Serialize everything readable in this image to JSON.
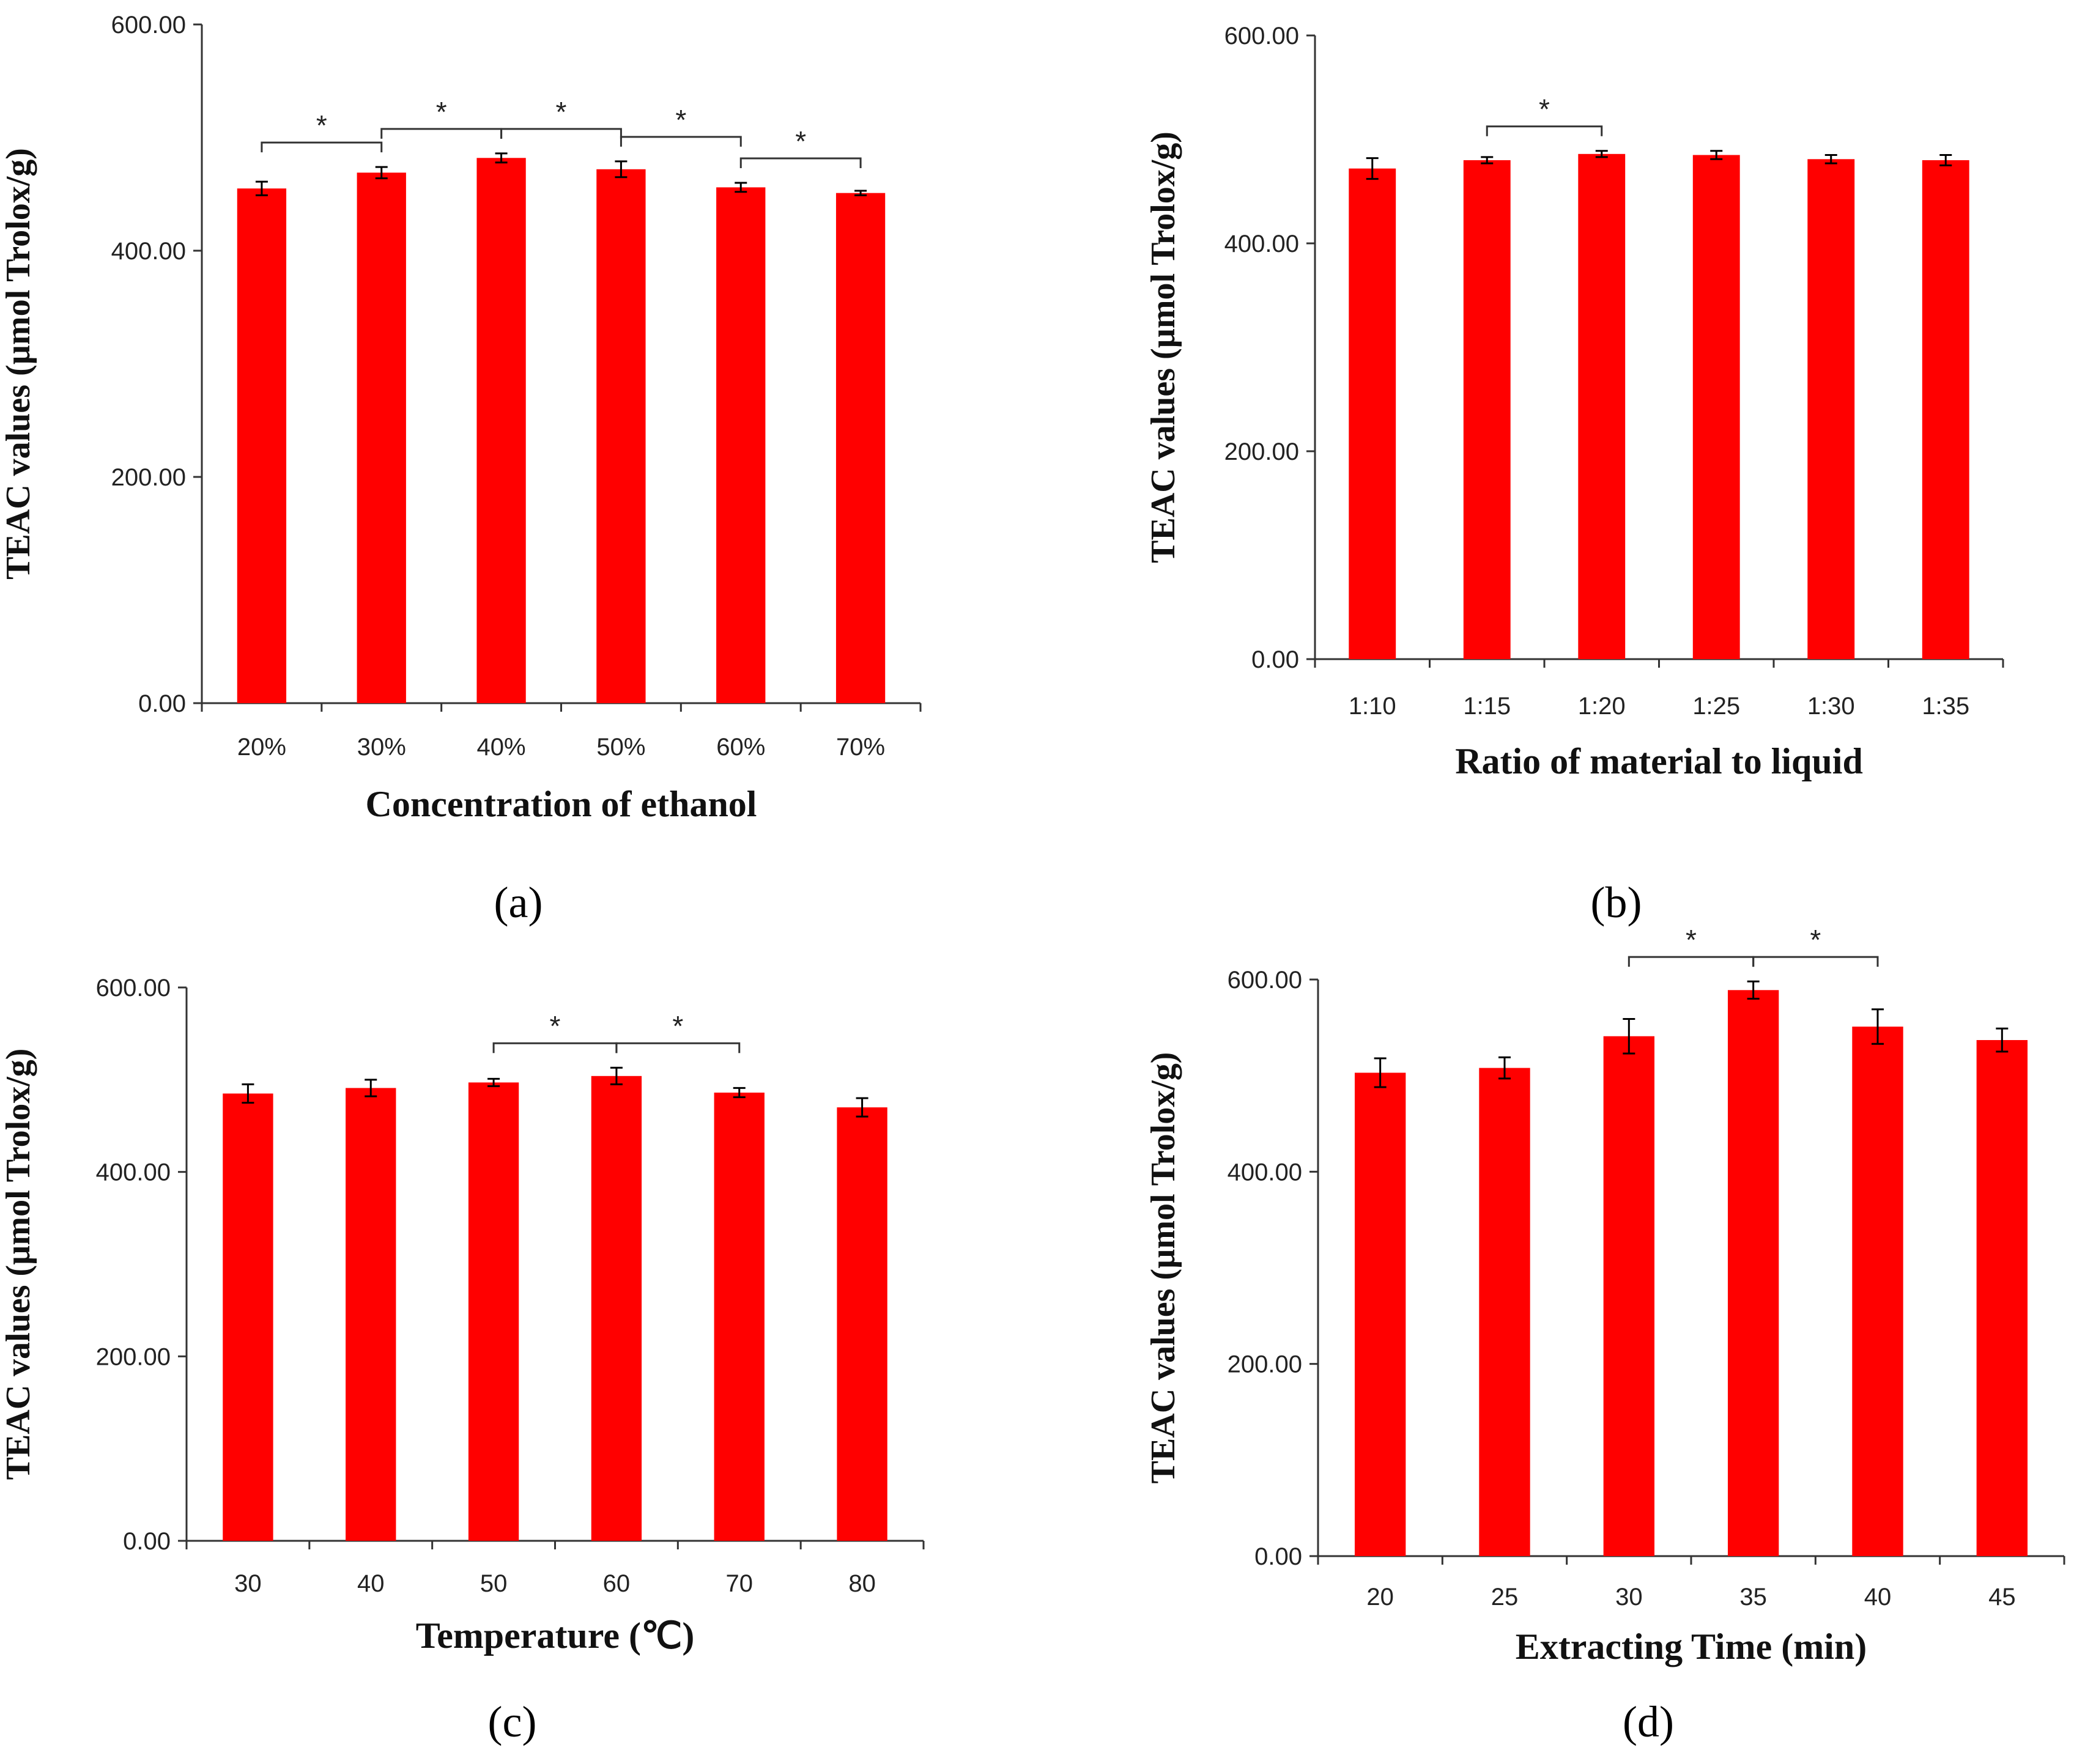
{
  "chart_data": [
    {
      "type": "bar",
      "panel_label": "(a)",
      "categories": [
        "20%",
        "30%",
        "40%",
        "50%",
        "60%",
        "70%"
      ],
      "values": [
        455,
        469,
        482,
        472,
        456,
        451
      ],
      "errors": [
        6,
        5,
        4,
        7,
        4,
        2
      ],
      "ylim": [
        0,
        600
      ],
      "yticks": [
        "0.00",
        "200.00",
        "400.00",
        "600.00"
      ],
      "ylabel": "TEAC values (µmol Trolox/g)",
      "xlabel": "Concentration of ethanol",
      "significance": [
        {
          "from": 0,
          "to": 1,
          "label": "*"
        },
        {
          "from": 1,
          "to": 2,
          "label": "*"
        },
        {
          "from": 2,
          "to": 3,
          "label": "*"
        },
        {
          "from": 3,
          "to": 4,
          "label": "*"
        },
        {
          "from": 4,
          "to": 5,
          "label": "*"
        }
      ],
      "color": "#ff0000"
    },
    {
      "type": "bar",
      "panel_label": "(b)",
      "categories": [
        "1:10",
        "1:15",
        "1:20",
        "1:25",
        "1:30",
        "1:35"
      ],
      "values": [
        472,
        480,
        486,
        485,
        481,
        480
      ],
      "errors": [
        10,
        3,
        3,
        4,
        4,
        5
      ],
      "ylim": [
        0,
        600
      ],
      "yticks": [
        "0.00",
        "200.00",
        "400.00",
        "600.00"
      ],
      "ylabel": "TEAC values (µmol Trolox/g)",
      "xlabel": "Ratio of material to liquid",
      "significance": [
        {
          "from": 1,
          "to": 2,
          "label": "*"
        }
      ],
      "color": "#ff0000"
    },
    {
      "type": "bar",
      "panel_label": "(c)",
      "categories": [
        "30",
        "40",
        "50",
        "60",
        "70",
        "80"
      ],
      "values": [
        485,
        491,
        497,
        504,
        486,
        470
      ],
      "errors": [
        10,
        9,
        4,
        9,
        5,
        10
      ],
      "ylim": [
        0,
        600
      ],
      "yticks": [
        "0.00",
        "200.00",
        "400.00",
        "600.00"
      ],
      "ylabel": "TEAC values (µmol Trolox/g)",
      "xlabel": "Temperature (℃)",
      "significance": [
        {
          "from": 2,
          "to": 3,
          "label": "*"
        },
        {
          "from": 3,
          "to": 4,
          "label": "*"
        }
      ],
      "color": "#ff0000"
    },
    {
      "type": "bar",
      "panel_label": "(d)",
      "categories": [
        "20",
        "25",
        "30",
        "35",
        "40",
        "45"
      ],
      "values": [
        503,
        508,
        541,
        589,
        551,
        537
      ],
      "errors": [
        15,
        11,
        18,
        9,
        18,
        12
      ],
      "ylim": [
        0,
        600
      ],
      "yticks": [
        "0.00",
        "200.00",
        "400.00",
        "600.00"
      ],
      "ylabel": "TEAC values (µmol Trolox/g)",
      "xlabel": "Extracting Time (min)",
      "significance": [
        {
          "from": 2,
          "to": 3,
          "label": "*"
        },
        {
          "from": 3,
          "to": 4,
          "label": "*"
        }
      ],
      "color": "#ff0000"
    }
  ]
}
